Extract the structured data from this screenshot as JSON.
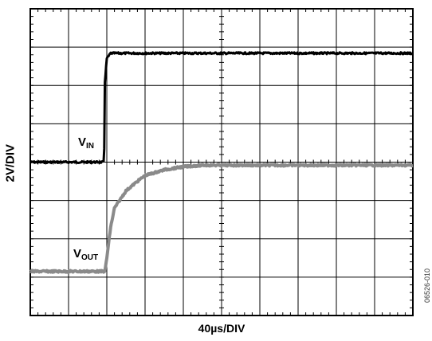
{
  "chart_data": {
    "type": "line",
    "xlabel": "40µs/DIV",
    "ylabel": "2V/DIV",
    "x_divisions": 10,
    "y_divisions": 8,
    "grid": true,
    "series": [
      {
        "name": "VIN",
        "label_main": "V",
        "label_sub": "IN",
        "color": "#000000",
        "x": [
          0,
          1.93,
          1.95,
          2.0,
          2.1,
          10
        ],
        "y": [
          0,
          0,
          2.1,
          2.7,
          2.84,
          2.84
        ]
      },
      {
        "name": "VOUT",
        "label_main": "V",
        "label_sub": "OUT",
        "color": "#8a8a8a",
        "x": [
          0,
          1.95,
          2.0,
          2.1,
          2.2,
          2.5,
          2.8,
          3.0,
          3.5,
          4.0,
          4.5,
          5.0,
          10
        ],
        "y": [
          -2.85,
          -2.85,
          -2.5,
          -1.7,
          -1.2,
          -0.75,
          -0.5,
          -0.35,
          -0.2,
          -0.12,
          -0.08,
          -0.08,
          -0.08
        ]
      }
    ]
  },
  "figure_id": "06526-010"
}
